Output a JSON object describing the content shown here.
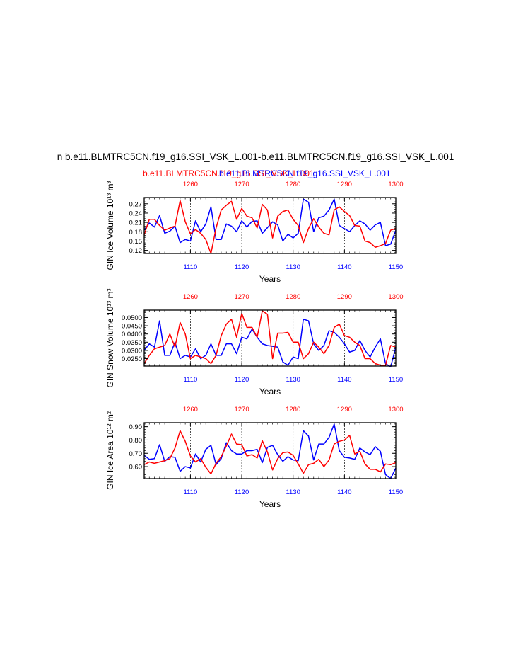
{
  "title": "n b.e11.BLMTRC5CN.f19_g16.SSI_VSK_L.001-b.e11.BLMTRC5CN.f19_g16.SSI_VSK_L.001",
  "subtitle_red": "b.e11.BLMTRC5CN.f19_g16.SSI_VSK_L.001",
  "subtitle_blue": "b.e11.BLMTRC5CN.f19_g16.SSI_VSK_L.001",
  "colors": {
    "series_a": "#ff0000",
    "series_b": "#0000ff",
    "axis": "#000000"
  },
  "chart_data": [
    {
      "type": "line",
      "ylabel": "GIN Ice Volume 10¹³ m³",
      "xlabel": "Years",
      "top_axis_years": [
        "1260",
        "1270",
        "1280",
        "1290",
        "1300"
      ],
      "bottom_axis_years": [
        "1110",
        "1120",
        "1130",
        "1140",
        "1150"
      ],
      "xlim": [
        1101,
        1150
      ],
      "ylim": [
        0.11,
        0.29
      ],
      "yticks": [
        0.12,
        0.15,
        0.18,
        0.21,
        0.24,
        0.27
      ],
      "ytick_labels": [
        "0.12",
        "0.15",
        "0.18",
        "0.21",
        "0.24",
        "0.27"
      ],
      "vlines": [
        1110,
        1120,
        1130,
        1140
      ],
      "series": [
        {
          "name": "blue",
          "values": [
            0.185,
            0.208,
            0.195,
            0.232,
            0.175,
            0.182,
            0.198,
            0.145,
            0.155,
            0.15,
            0.215,
            0.18,
            0.205,
            0.26,
            0.155,
            0.155,
            0.205,
            0.198,
            0.18,
            0.215,
            0.195,
            0.213,
            0.215,
            0.175,
            0.193,
            0.212,
            0.202,
            0.15,
            0.172,
            0.16,
            0.175,
            0.285,
            0.275,
            0.18,
            0.225,
            0.23,
            0.25,
            0.285,
            0.2,
            0.19,
            0.18,
            0.2,
            0.215,
            0.205,
            0.185,
            0.202,
            0.21,
            0.135,
            0.14,
            0.185
          ]
        },
        {
          "name": "red",
          "values": [
            0.17,
            0.22,
            0.22,
            0.2,
            0.185,
            0.192,
            0.198,
            0.28,
            0.212,
            0.173,
            0.187,
            0.175,
            0.155,
            0.11,
            0.192,
            0.25,
            0.265,
            0.278,
            0.22,
            0.255,
            0.23,
            0.225,
            0.192,
            0.268,
            0.25,
            0.16,
            0.23,
            0.245,
            0.25,
            0.22,
            0.2,
            0.145,
            0.19,
            0.222,
            0.195,
            0.175,
            0.17,
            0.25,
            0.26,
            0.245,
            0.232,
            0.2,
            0.198,
            0.15,
            0.145,
            0.13,
            0.135,
            0.142,
            0.185,
            0.19
          ]
        }
      ]
    },
    {
      "type": "line",
      "ylabel": "GIN Snow Volume 10¹³ m³",
      "xlabel": "Years",
      "top_axis_years": [
        "1260",
        "1270",
        "1280",
        "1290",
        "1300"
      ],
      "bottom_axis_years": [
        "1110",
        "1120",
        "1130",
        "1140",
        "1150"
      ],
      "xlim": [
        1101,
        1150
      ],
      "ylim": [
        0.0205,
        0.0545
      ],
      "yticks": [
        0.025,
        0.03,
        0.035,
        0.04,
        0.045,
        0.05
      ],
      "ytick_labels": [
        "0.0250",
        "0.0300",
        "0.0350",
        "0.0400",
        "0.0450",
        "0.0500"
      ],
      "vlines": [
        1110,
        1120,
        1130,
        1140
      ],
      "series": [
        {
          "name": "blue",
          "values": [
            0.03,
            0.034,
            0.032,
            0.048,
            0.027,
            0.027,
            0.035,
            0.025,
            0.027,
            0.026,
            0.031,
            0.025,
            0.027,
            0.034,
            0.027,
            0.027,
            0.034,
            0.034,
            0.028,
            0.038,
            0.037,
            0.043,
            0.038,
            0.034,
            0.033,
            0.0325,
            0.032,
            0.023,
            0.021,
            0.026,
            0.025,
            0.049,
            0.048,
            0.034,
            0.03,
            0.033,
            0.042,
            0.041,
            0.038,
            0.034,
            0.029,
            0.03,
            0.036,
            0.03,
            0.026,
            0.032,
            0.037,
            0.022,
            0.02,
            0.032
          ]
        },
        {
          "name": "red",
          "values": [
            0.022,
            0.027,
            0.031,
            0.032,
            0.033,
            0.04,
            0.032,
            0.047,
            0.04,
            0.025,
            0.027,
            0.026,
            0.025,
            0.022,
            0.027,
            0.039,
            0.046,
            0.049,
            0.038,
            0.0525,
            0.044,
            0.044,
            0.038,
            0.054,
            0.052,
            0.025,
            0.0405,
            0.0405,
            0.041,
            0.035,
            0.035,
            0.025,
            0.028,
            0.035,
            0.032,
            0.028,
            0.033,
            0.044,
            0.046,
            0.039,
            0.038,
            0.035,
            0.033,
            0.025,
            0.025,
            0.022,
            0.021,
            0.021,
            0.033,
            0.032
          ]
        }
      ]
    },
    {
      "type": "line",
      "ylabel": "GIN Ice Area 10¹² m²",
      "xlabel": "Years",
      "top_axis_years": [
        "1260",
        "1270",
        "1280",
        "1290",
        "1300"
      ],
      "bottom_axis_years": [
        "1110",
        "1120",
        "1130",
        "1140",
        "1150"
      ],
      "xlim": [
        1101,
        1150
      ],
      "ylim": [
        0.51,
        0.93
      ],
      "yticks": [
        0.6,
        0.7,
        0.8,
        0.9
      ],
      "ytick_labels": [
        "0.60",
        "0.70",
        "0.80",
        "0.90"
      ],
      "vlines": [
        1110,
        1120,
        1130,
        1140
      ],
      "series": [
        {
          "name": "blue",
          "values": [
            0.685,
            0.655,
            0.66,
            0.765,
            0.64,
            0.675,
            0.67,
            0.565,
            0.6,
            0.59,
            0.695,
            0.635,
            0.73,
            0.76,
            0.615,
            0.66,
            0.78,
            0.72,
            0.695,
            0.695,
            0.72,
            0.72,
            0.73,
            0.63,
            0.745,
            0.76,
            0.69,
            0.64,
            0.675,
            0.65,
            0.645,
            0.87,
            0.83,
            0.65,
            0.77,
            0.77,
            0.82,
            0.92,
            0.72,
            0.67,
            0.665,
            0.655,
            0.74,
            0.71,
            0.69,
            0.75,
            0.715,
            0.54,
            0.51,
            0.59
          ]
        },
        {
          "name": "red",
          "values": [
            0.615,
            0.635,
            0.625,
            0.635,
            0.645,
            0.66,
            0.74,
            0.87,
            0.79,
            0.68,
            0.635,
            0.66,
            0.595,
            0.545,
            0.625,
            0.675,
            0.755,
            0.845,
            0.77,
            0.765,
            0.68,
            0.69,
            0.665,
            0.795,
            0.71,
            0.575,
            0.66,
            0.705,
            0.71,
            0.685,
            0.62,
            0.55,
            0.615,
            0.625,
            0.655,
            0.6,
            0.65,
            0.77,
            0.79,
            0.8,
            0.835,
            0.695,
            0.715,
            0.62,
            0.58,
            0.58,
            0.56,
            0.62,
            0.615,
            0.63
          ]
        }
      ]
    }
  ]
}
